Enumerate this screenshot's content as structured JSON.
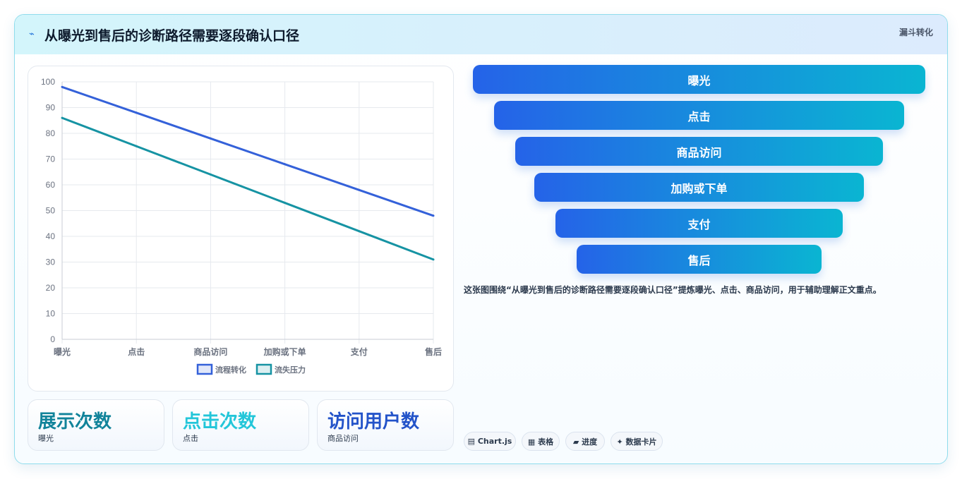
{
  "header": {
    "icon": "lightning-icon",
    "title": "从曝光到售后的诊断路径需要逐段确认口径",
    "tag": "漏斗转化"
  },
  "chart_data": {
    "type": "line",
    "categories": [
      "曝光",
      "点击",
      "商品访问",
      "加购或下单",
      "支付",
      "售后"
    ],
    "ylim": [
      0,
      100
    ],
    "yticks": [
      0,
      10,
      20,
      30,
      40,
      50,
      60,
      70,
      80,
      90,
      100
    ],
    "grid": true,
    "legend_position": "bottom",
    "series": [
      {
        "name": "流程转化",
        "values": [
          98,
          88,
          78,
          68,
          58,
          48
        ],
        "color": "#3461d9"
      },
      {
        "name": "流失压力",
        "values": [
          86,
          75,
          64,
          53,
          42,
          31
        ],
        "color": "#1693a3"
      }
    ]
  },
  "stats": [
    {
      "value": "展示次数",
      "label": "曝光",
      "color": "#11839a"
    },
    {
      "value": "点击次数",
      "label": "点击",
      "color": "#23c6d9"
    },
    {
      "value": "访问用户数",
      "label": "商品访问",
      "color": "#2353c9"
    }
  ],
  "funnel": [
    {
      "label": "曝光"
    },
    {
      "label": "点击"
    },
    {
      "label": "商品访问"
    },
    {
      "label": "加购或下单"
    },
    {
      "label": "支付"
    },
    {
      "label": "售后"
    }
  ],
  "caption": "这张图围绕“从曝光到售后的诊断路径需要逐段确认口径”提炼曝光、点击、商品访问，用于辅助理解正文重点。",
  "chips": [
    {
      "label": "▤ Chart.js",
      "icon": "chart-icon"
    },
    {
      "label": "▦ 表格",
      "icon": "table-icon"
    },
    {
      "label": "▰ 进度",
      "icon": "progress-icon"
    },
    {
      "label": "✦ 数据卡片",
      "icon": "sparkle-icon"
    }
  ]
}
